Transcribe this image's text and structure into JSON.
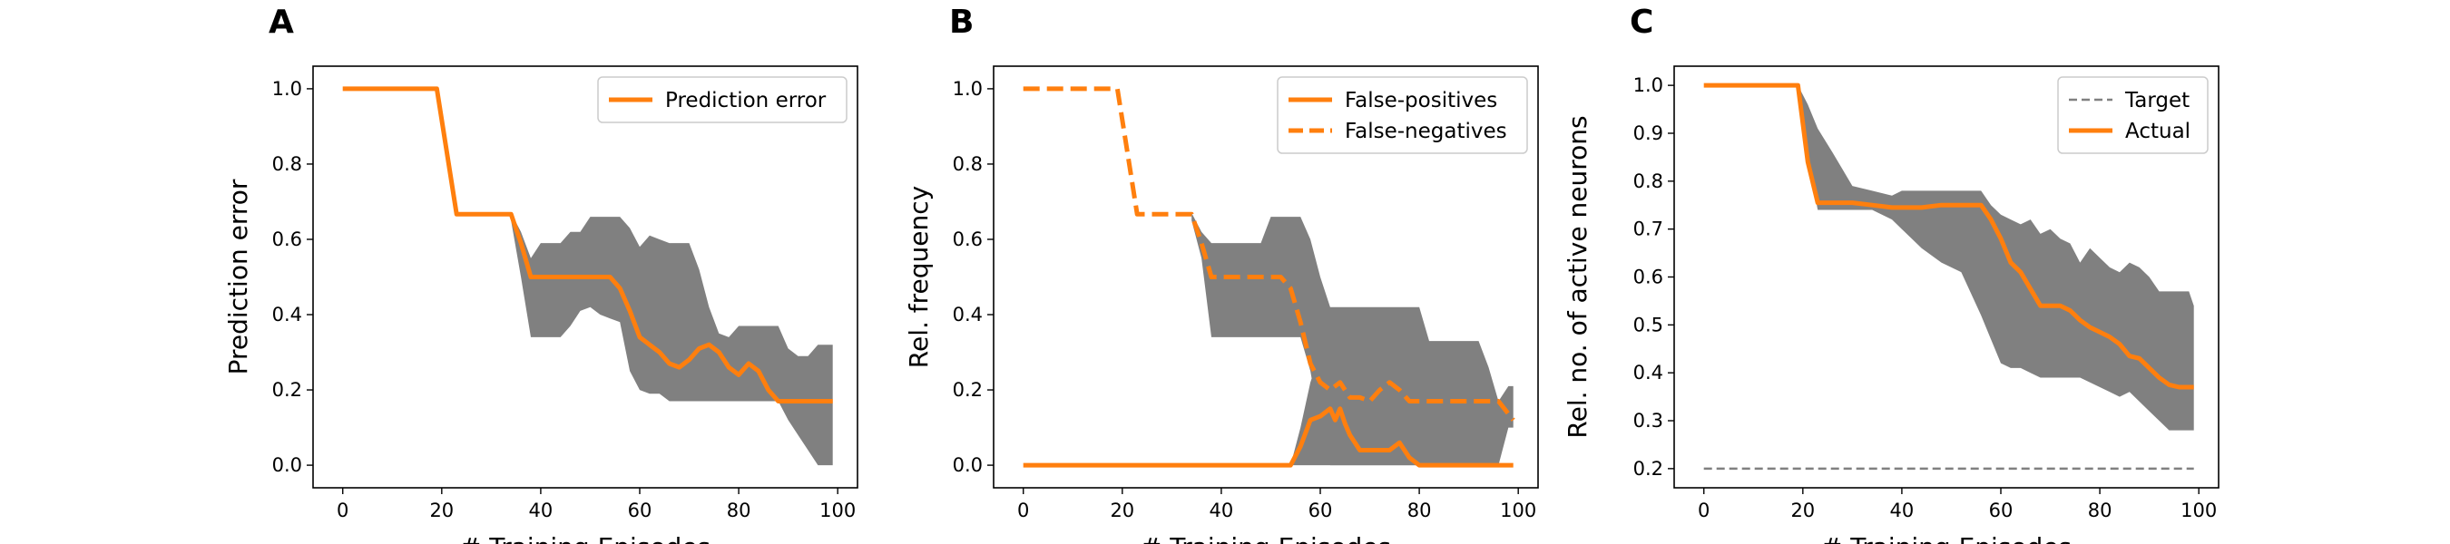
{
  "chart_data": [
    {
      "panel": "A",
      "type": "line",
      "xlabel": "# Training Episodes",
      "ylabel": "Prediction error",
      "xlim": [
        -6,
        104
      ],
      "ylim": [
        -0.06,
        1.06
      ],
      "xticks": [
        0,
        20,
        40,
        60,
        80,
        100
      ],
      "yticks": [
        0.0,
        0.2,
        0.4,
        0.6,
        0.8,
        1.0
      ],
      "ytick_labels": [
        "0.0",
        "0.2",
        "0.4",
        "0.6",
        "0.8",
        "1.0"
      ],
      "legend": "top-right",
      "band": {
        "color": "#808080",
        "x": [
          34,
          36,
          38,
          40,
          42,
          44,
          46,
          48,
          50,
          52,
          54,
          56,
          58,
          60,
          62,
          64,
          66,
          68,
          70,
          72,
          74,
          76,
          78,
          80,
          82,
          84,
          86,
          88,
          90,
          92,
          94,
          96,
          98,
          99
        ],
        "lower": [
          0.65,
          0.5,
          0.34,
          0.34,
          0.34,
          0.34,
          0.37,
          0.41,
          0.42,
          0.4,
          0.39,
          0.38,
          0.25,
          0.2,
          0.19,
          0.19,
          0.17,
          0.17,
          0.17,
          0.17,
          0.17,
          0.17,
          0.17,
          0.17,
          0.17,
          0.17,
          0.17,
          0.17,
          0.12,
          0.08,
          0.04,
          0.0,
          0.0,
          0.0
        ],
        "upper": [
          0.67,
          0.62,
          0.55,
          0.59,
          0.59,
          0.59,
          0.62,
          0.62,
          0.66,
          0.66,
          0.66,
          0.66,
          0.63,
          0.58,
          0.61,
          0.6,
          0.59,
          0.59,
          0.59,
          0.52,
          0.42,
          0.35,
          0.34,
          0.37,
          0.37,
          0.37,
          0.37,
          0.37,
          0.31,
          0.29,
          0.29,
          0.32,
          0.32,
          0.32
        ]
      },
      "series": [
        {
          "name": "Prediction error",
          "color": "#ff7f0e",
          "style": "solid",
          "x": [
            0,
            19,
            23,
            34,
            36,
            38,
            40,
            44,
            48,
            52,
            54,
            56,
            58,
            60,
            62,
            64,
            66,
            68,
            70,
            72,
            74,
            76,
            78,
            80,
            82,
            84,
            86,
            88,
            90,
            94,
            98,
            99
          ],
          "y": [
            1.0,
            1.0,
            0.667,
            0.667,
            0.59,
            0.5,
            0.5,
            0.5,
            0.5,
            0.5,
            0.5,
            0.47,
            0.41,
            0.34,
            0.32,
            0.3,
            0.27,
            0.26,
            0.28,
            0.31,
            0.32,
            0.3,
            0.26,
            0.24,
            0.27,
            0.25,
            0.2,
            0.17,
            0.17,
            0.17,
            0.17,
            0.17
          ]
        }
      ]
    },
    {
      "panel": "B",
      "type": "line",
      "xlabel": "# Training Episodes",
      "ylabel": "Rel. frequency",
      "xlim": [
        -6,
        104
      ],
      "ylim": [
        -0.06,
        1.06
      ],
      "xticks": [
        0,
        20,
        40,
        60,
        80,
        100
      ],
      "yticks": [
        0.0,
        0.2,
        0.4,
        0.6,
        0.8,
        1.0
      ],
      "ytick_labels": [
        "0.0",
        "0.2",
        "0.4",
        "0.6",
        "0.8",
        "1.0"
      ],
      "legend": "top-right",
      "bands": [
        {
          "color": "#808080",
          "x": [
            34,
            36,
            38,
            40,
            44,
            48,
            50,
            52,
            54,
            56,
            58,
            60,
            62,
            64,
            66,
            68,
            70,
            72,
            74,
            76,
            78,
            80,
            82,
            84,
            86,
            88,
            90,
            92,
            94,
            96,
            98,
            99
          ],
          "lower": [
            0.65,
            0.55,
            0.34,
            0.34,
            0.34,
            0.34,
            0.34,
            0.34,
            0.34,
            0.34,
            0.25,
            0.1,
            0.0,
            0.0,
            0.0,
            0.0,
            0.0,
            0.0,
            0.0,
            0.0,
            0.0,
            0.0,
            0.0,
            0.0,
            0.0,
            0.0,
            0.0,
            0.0,
            0.0,
            0.0,
            0.1,
            0.1
          ],
          "upper": [
            0.67,
            0.62,
            0.59,
            0.59,
            0.59,
            0.59,
            0.66,
            0.66,
            0.66,
            0.66,
            0.6,
            0.5,
            0.42,
            0.42,
            0.42,
            0.42,
            0.42,
            0.42,
            0.42,
            0.42,
            0.42,
            0.42,
            0.33,
            0.33,
            0.33,
            0.33,
            0.33,
            0.33,
            0.26,
            0.17,
            0.21,
            0.21
          ]
        },
        {
          "color": "#808080",
          "x": [
            54,
            56,
            58,
            60,
            62,
            64,
            66,
            68,
            70,
            72,
            74,
            76,
            78,
            80
          ],
          "lower": [
            0.0,
            0.0,
            0.0,
            0.0,
            0.0,
            0.0,
            0.0,
            0.0,
            0.0,
            0.0,
            0.0,
            0.0,
            0.0,
            0.0
          ],
          "upper": [
            0.0,
            0.1,
            0.22,
            0.3,
            0.35,
            0.38,
            0.4,
            0.4,
            0.4,
            0.4,
            0.38,
            0.3,
            0.2,
            0.0
          ]
        }
      ],
      "series": [
        {
          "name": "False-positives",
          "color": "#ff7f0e",
          "style": "solid",
          "x": [
            0,
            54,
            56,
            58,
            60,
            62,
            63,
            64,
            65,
            66,
            68,
            70,
            72,
            74,
            76,
            78,
            80,
            99
          ],
          "y": [
            0.0,
            0.0,
            0.05,
            0.12,
            0.13,
            0.15,
            0.12,
            0.15,
            0.11,
            0.08,
            0.04,
            0.04,
            0.04,
            0.04,
            0.06,
            0.02,
            0.0,
            0.0
          ]
        },
        {
          "name": "False-negatives",
          "color": "#ff7f0e",
          "style": "dashed",
          "x": [
            0,
            19,
            23,
            34,
            36,
            38,
            40,
            44,
            48,
            52,
            54,
            56,
            58,
            60,
            62,
            64,
            66,
            68,
            70,
            72,
            74,
            76,
            78,
            80,
            84,
            88,
            92,
            96,
            99
          ],
          "y": [
            1.0,
            1.0,
            0.667,
            0.667,
            0.59,
            0.5,
            0.5,
            0.5,
            0.5,
            0.5,
            0.47,
            0.38,
            0.27,
            0.22,
            0.2,
            0.22,
            0.18,
            0.18,
            0.17,
            0.2,
            0.22,
            0.2,
            0.17,
            0.17,
            0.17,
            0.17,
            0.17,
            0.17,
            0.12
          ]
        }
      ]
    },
    {
      "panel": "C",
      "type": "line",
      "xlabel": "# Training Episodes",
      "ylabel": "Rel. no. of active neurons",
      "xlim": [
        -6,
        104
      ],
      "ylim": [
        0.16,
        1.04
      ],
      "xticks": [
        0,
        20,
        40,
        60,
        80,
        100
      ],
      "yticks": [
        0.2,
        0.3,
        0.4,
        0.5,
        0.6,
        0.7,
        0.8,
        0.9,
        1.0
      ],
      "ytick_labels": [
        "0.2",
        "0.3",
        "0.4",
        "0.5",
        "0.6",
        "0.7",
        "0.8",
        "0.9",
        "1.0"
      ],
      "legend": "top-right",
      "band": {
        "color": "#808080",
        "x": [
          19,
          21,
          23,
          26,
          30,
          34,
          38,
          40,
          44,
          48,
          52,
          56,
          58,
          60,
          62,
          64,
          66,
          68,
          70,
          72,
          74,
          76,
          78,
          80,
          82,
          84,
          86,
          88,
          90,
          92,
          94,
          96,
          98,
          99
        ],
        "lower": [
          1.0,
          0.85,
          0.74,
          0.74,
          0.74,
          0.74,
          0.72,
          0.7,
          0.66,
          0.63,
          0.61,
          0.52,
          0.47,
          0.42,
          0.41,
          0.41,
          0.4,
          0.39,
          0.39,
          0.39,
          0.39,
          0.39,
          0.38,
          0.37,
          0.36,
          0.35,
          0.36,
          0.34,
          0.32,
          0.3,
          0.28,
          0.28,
          0.28,
          0.28
        ],
        "upper": [
          1.0,
          0.96,
          0.91,
          0.86,
          0.79,
          0.78,
          0.77,
          0.78,
          0.78,
          0.78,
          0.78,
          0.78,
          0.75,
          0.73,
          0.72,
          0.71,
          0.72,
          0.69,
          0.7,
          0.68,
          0.67,
          0.63,
          0.66,
          0.64,
          0.62,
          0.61,
          0.63,
          0.62,
          0.6,
          0.57,
          0.57,
          0.57,
          0.57,
          0.54
        ]
      },
      "series": [
        {
          "name": "Target",
          "color": "#808080",
          "style": "dashed",
          "x": [
            0,
            99
          ],
          "y": [
            0.2,
            0.2
          ]
        },
        {
          "name": "Actual",
          "color": "#ff7f0e",
          "style": "solid",
          "x": [
            0,
            19,
            21,
            23,
            30,
            34,
            38,
            44,
            48,
            52,
            56,
            58,
            60,
            62,
            64,
            66,
            68,
            70,
            72,
            74,
            76,
            78,
            80,
            82,
            84,
            86,
            88,
            90,
            92,
            94,
            96,
            99
          ],
          "y": [
            1.0,
            1.0,
            0.84,
            0.755,
            0.755,
            0.75,
            0.745,
            0.745,
            0.75,
            0.75,
            0.75,
            0.72,
            0.68,
            0.63,
            0.61,
            0.575,
            0.54,
            0.54,
            0.54,
            0.53,
            0.51,
            0.495,
            0.485,
            0.475,
            0.46,
            0.435,
            0.43,
            0.41,
            0.39,
            0.375,
            0.37,
            0.37
          ]
        }
      ]
    }
  ]
}
